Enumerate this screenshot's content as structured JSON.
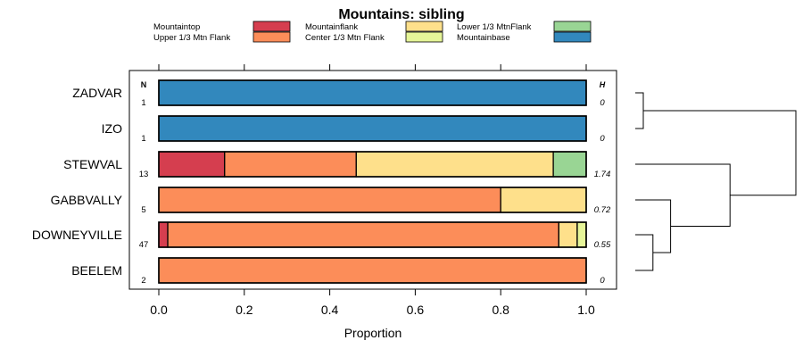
{
  "chart_data": {
    "type": "bar",
    "orientation": "horizontal",
    "stacked": true,
    "title": "Mountains: sibling",
    "xlabel": "Proportion",
    "ylabel": "",
    "xlim": [
      0,
      1
    ],
    "xticks": [
      0.0,
      0.2,
      0.4,
      0.6,
      0.8,
      1.0
    ],
    "xtick_labels": [
      "0.0",
      "0.2",
      "0.4",
      "0.6",
      "0.8",
      "1.0"
    ],
    "n_header": "N",
    "h_header": "H",
    "legend": [
      {
        "name": "Mountaintop",
        "color": "#d53e4f"
      },
      {
        "name": "Upper 1/3 Mtn Flank",
        "color": "#fc8d59"
      },
      {
        "name": "Mountainflank",
        "color": "#fee08b"
      },
      {
        "name": "Center 1/3 Mtn Flank",
        "color": "#e6f598"
      },
      {
        "name": "Lower 1/3 MtnFlank",
        "color": "#99d594"
      },
      {
        "name": "Mountainbase",
        "color": "#3288bd"
      }
    ],
    "categories": [
      "ZADVAR",
      "IZO",
      "STEWVAL",
      "GABBVALLY",
      "DOWNEYVILLE",
      "BEELEM"
    ],
    "n": [
      "1",
      "1",
      "13",
      "5",
      "47",
      "2"
    ],
    "h": [
      "0",
      "0",
      "1.74",
      "0.72",
      "0.55",
      "0"
    ],
    "series": [
      {
        "name": "Mountaintop",
        "values": [
          0,
          0,
          0.154,
          0,
          0.021,
          0
        ]
      },
      {
        "name": "Upper 1/3 Mtn Flank",
        "values": [
          0,
          0,
          0.308,
          0.8,
          0.915,
          1.0
        ]
      },
      {
        "name": "Mountainflank",
        "values": [
          0,
          0,
          0.461,
          0.2,
          0.043,
          0
        ]
      },
      {
        "name": "Center 1/3 Mtn Flank",
        "values": [
          0,
          0,
          0,
          0,
          0.021,
          0
        ]
      },
      {
        "name": "Lower 1/3 MtnFlank",
        "values": [
          0,
          0,
          0.077,
          0,
          0,
          0
        ]
      },
      {
        "name": "Mountainbase",
        "values": [
          1.0,
          1.0,
          0,
          0,
          0,
          0
        ]
      }
    ],
    "dendrogram": {
      "merges": [
        {
          "a": "ZADVAR",
          "b": "IZO",
          "height": 0.05
        },
        {
          "a": "DOWNEYVILLE",
          "b": "BEELEM",
          "height": 0.11
        },
        {
          "a": "GABBVALLY",
          "b": "DOWNEYVILLE+BEELEM",
          "height": 0.22
        },
        {
          "a": "STEWVAL",
          "b": "GABBVALLY+DOWNEYVILLE+BEELEM",
          "height": 0.59
        },
        {
          "a": "ZADVAR+IZO",
          "b": "STEWVAL+GABBVALLY+DOWNEYVILLE+BEELEM",
          "height": 1.0
        }
      ]
    }
  }
}
